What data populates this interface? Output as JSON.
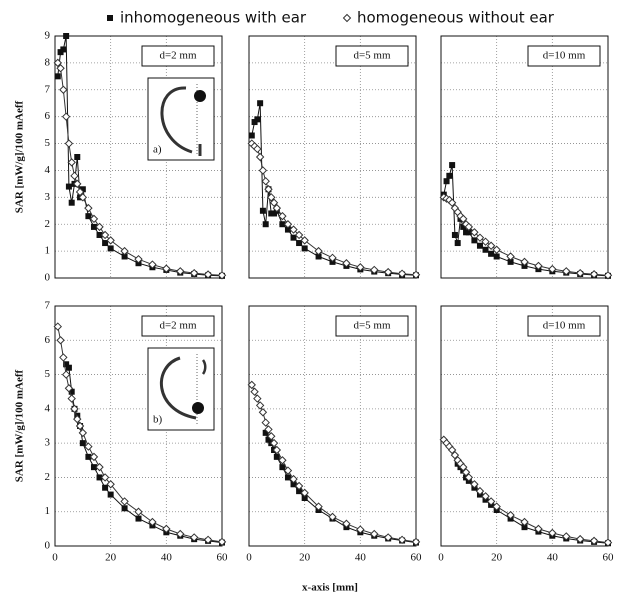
{
  "legend": [
    {
      "name": "inhomogeneous with ear",
      "color": "#111111",
      "marker": "square"
    },
    {
      "name": "homogeneous without ear",
      "color": "#333333",
      "marker": "diamond"
    }
  ],
  "x_label": "x-axis [mm]",
  "chart_data": [
    {
      "type": "line",
      "annotation": "d=2 mm",
      "inset_label": "a)",
      "y_label": "SAR [mW/g]/100 mAeff",
      "x": [
        1,
        2,
        3,
        4,
        5,
        6,
        7,
        8,
        9,
        10,
        12,
        14,
        16,
        18,
        20,
        25,
        30,
        35,
        40,
        45,
        50,
        55,
        60
      ],
      "xlim": [
        0,
        60
      ],
      "xticks": [
        0,
        20,
        40,
        60
      ],
      "ylim": [
        0,
        9
      ],
      "yticks": [
        0,
        1,
        2,
        3,
        4,
        5,
        6,
        7,
        8,
        9
      ],
      "grid": true,
      "series": [
        {
          "values": [
            7.5,
            8.4,
            8.5,
            9.0,
            3.4,
            2.8,
            3.5,
            4.5,
            3.0,
            3.3,
            2.3,
            1.9,
            1.6,
            1.3,
            1.1,
            0.8,
            0.55,
            0.4,
            0.3,
            0.2,
            0.15,
            0.1,
            0.08
          ]
        },
        {
          "values": [
            8.0,
            7.8,
            7.0,
            6.0,
            5.0,
            4.3,
            3.8,
            3.5,
            3.2,
            3.0,
            2.6,
            2.2,
            1.9,
            1.6,
            1.4,
            1.0,
            0.7,
            0.5,
            0.35,
            0.25,
            0.18,
            0.13,
            0.1
          ]
        }
      ]
    },
    {
      "type": "line",
      "annotation": "d=5 mm",
      "x": [
        1,
        2,
        3,
        4,
        5,
        6,
        7,
        8,
        9,
        10,
        12,
        14,
        16,
        18,
        20,
        25,
        30,
        35,
        40,
        45,
        50,
        55,
        60
      ],
      "xlim": [
        0,
        60
      ],
      "xticks": [
        0,
        20,
        40,
        60
      ],
      "ylim": [
        0,
        9
      ],
      "yticks": [
        0,
        1,
        2,
        3,
        4,
        5,
        6,
        7,
        8,
        9
      ],
      "grid": true,
      "series": [
        {
          "values": [
            5.3,
            5.8,
            5.9,
            6.5,
            2.5,
            2.0,
            3.3,
            2.4,
            2.4,
            2.5,
            2.0,
            1.8,
            1.5,
            1.3,
            1.1,
            0.8,
            0.6,
            0.45,
            0.32,
            0.24,
            0.18,
            0.13,
            0.1
          ]
        },
        {
          "values": [
            5.0,
            4.9,
            4.8,
            4.5,
            4.0,
            3.6,
            3.3,
            3.0,
            2.8,
            2.6,
            2.3,
            2.0,
            1.8,
            1.6,
            1.4,
            1.0,
            0.75,
            0.55,
            0.4,
            0.3,
            0.22,
            0.16,
            0.12
          ]
        }
      ]
    },
    {
      "type": "line",
      "annotation": "d=10 mm",
      "x": [
        1,
        2,
        3,
        4,
        5,
        6,
        7,
        8,
        9,
        10,
        12,
        14,
        16,
        18,
        20,
        25,
        30,
        35,
        40,
        45,
        50,
        55,
        60
      ],
      "xlim": [
        0,
        60
      ],
      "xticks": [
        0,
        20,
        40,
        60
      ],
      "ylim": [
        0,
        9
      ],
      "yticks": [
        0,
        1,
        2,
        3,
        4,
        5,
        6,
        7,
        8,
        9
      ],
      "grid": true,
      "series": [
        {
          "values": [
            3.1,
            3.6,
            3.8,
            4.2,
            1.6,
            1.3,
            2.2,
            1.9,
            1.7,
            1.7,
            1.4,
            1.2,
            1.05,
            0.9,
            0.8,
            0.6,
            0.45,
            0.33,
            0.25,
            0.2,
            0.15,
            0.11,
            0.08
          ]
        },
        {
          "values": [
            3.0,
            2.95,
            2.9,
            2.8,
            2.6,
            2.45,
            2.3,
            2.2,
            2.0,
            1.9,
            1.7,
            1.5,
            1.35,
            1.2,
            1.05,
            0.8,
            0.6,
            0.45,
            0.33,
            0.25,
            0.18,
            0.14,
            0.1
          ]
        }
      ]
    },
    {
      "type": "line",
      "annotation": "d=2 mm",
      "inset_label": "b)",
      "y_label": "SAR [mW/g]/100 mAeff",
      "x": [
        1,
        2,
        3,
        4,
        5,
        6,
        7,
        8,
        9,
        10,
        12,
        14,
        16,
        18,
        20,
        25,
        30,
        35,
        40,
        45,
        50,
        55,
        60
      ],
      "xlim": [
        0,
        60
      ],
      "xticks": [
        0,
        20,
        40,
        60
      ],
      "ylim": [
        0,
        7
      ],
      "yticks": [
        0,
        1,
        2,
        3,
        4,
        5,
        6,
        7
      ],
      "grid": true,
      "series": [
        {
          "values": [
            null,
            null,
            null,
            5.3,
            5.2,
            4.5,
            4.0,
            3.8,
            3.5,
            3.0,
            2.6,
            2.3,
            2.0,
            1.7,
            1.5,
            1.1,
            0.8,
            0.6,
            0.4,
            0.3,
            0.2,
            0.15,
            0.1
          ]
        },
        {
          "values": [
            6.4,
            6.0,
            5.5,
            5.0,
            4.6,
            4.3,
            4.0,
            3.7,
            3.5,
            3.3,
            2.9,
            2.6,
            2.3,
            2.0,
            1.8,
            1.3,
            1.0,
            0.7,
            0.5,
            0.35,
            0.25,
            0.18,
            0.12
          ]
        }
      ]
    },
    {
      "type": "line",
      "annotation": "d=5 mm",
      "x": [
        1,
        2,
        3,
        4,
        5,
        6,
        7,
        8,
        9,
        10,
        12,
        14,
        16,
        18,
        20,
        25,
        30,
        35,
        40,
        45,
        50,
        55,
        60
      ],
      "xlim": [
        0,
        60
      ],
      "xticks": [
        0,
        20,
        40,
        60
      ],
      "ylim": [
        0,
        7
      ],
      "yticks": [
        0,
        1,
        2,
        3,
        4,
        5,
        6,
        7
      ],
      "grid": true,
      "series": [
        {
          "values": [
            null,
            null,
            null,
            null,
            null,
            3.3,
            3.1,
            3.0,
            2.8,
            2.6,
            2.3,
            2.0,
            1.8,
            1.6,
            1.4,
            1.05,
            0.8,
            0.55,
            0.4,
            0.3,
            0.22,
            0.16,
            0.1
          ]
        },
        {
          "values": [
            4.7,
            4.5,
            4.3,
            4.1,
            3.9,
            3.6,
            3.4,
            3.2,
            3.0,
            2.8,
            2.5,
            2.2,
            1.95,
            1.75,
            1.55,
            1.15,
            0.85,
            0.65,
            0.48,
            0.35,
            0.25,
            0.18,
            0.12
          ]
        }
      ]
    },
    {
      "type": "line",
      "annotation": "d=10 mm",
      "x": [
        1,
        2,
        3,
        4,
        5,
        6,
        7,
        8,
        9,
        10,
        12,
        14,
        16,
        18,
        20,
        25,
        30,
        35,
        40,
        45,
        50,
        55,
        60
      ],
      "xlim": [
        0,
        60
      ],
      "xticks": [
        0,
        20,
        40,
        60
      ],
      "ylim": [
        0,
        7
      ],
      "yticks": [
        0,
        1,
        2,
        3,
        4,
        5,
        6,
        7
      ],
      "grid": true,
      "series": [
        {
          "values": [
            null,
            null,
            null,
            null,
            null,
            2.4,
            2.3,
            2.2,
            2.0,
            1.9,
            1.7,
            1.5,
            1.35,
            1.2,
            1.05,
            0.8,
            0.55,
            0.42,
            0.3,
            0.22,
            0.16,
            0.12,
            0.08
          ]
        },
        {
          "values": [
            3.1,
            3.0,
            2.9,
            2.8,
            2.65,
            2.5,
            2.4,
            2.3,
            2.15,
            2.0,
            1.8,
            1.6,
            1.45,
            1.3,
            1.15,
            0.9,
            0.7,
            0.5,
            0.38,
            0.28,
            0.2,
            0.15,
            0.1
          ]
        }
      ]
    }
  ]
}
